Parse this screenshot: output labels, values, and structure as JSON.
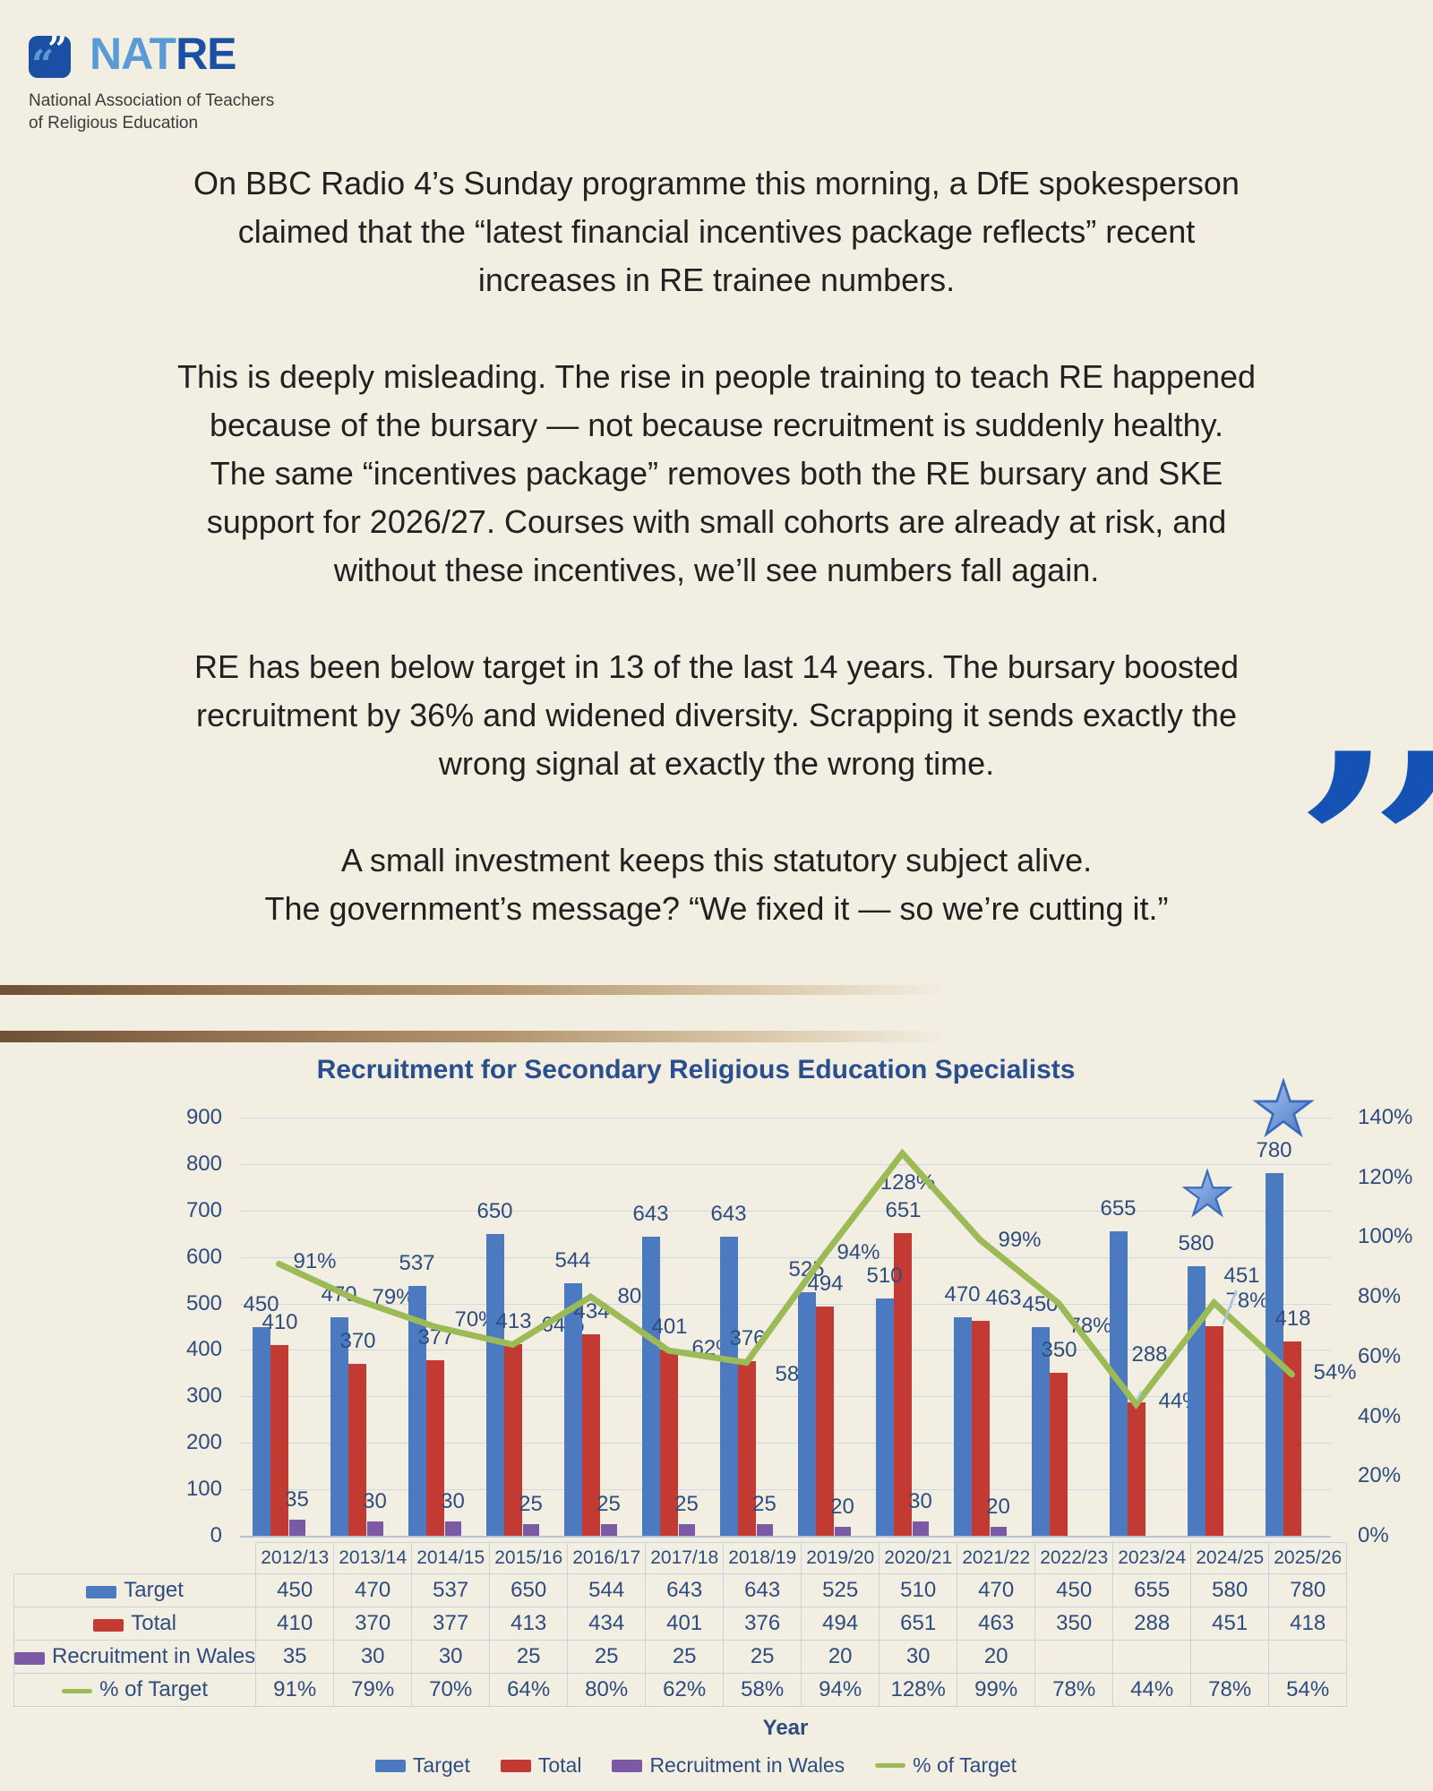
{
  "logo": {
    "icon_open": "“",
    "icon_close": "”",
    "acronym_light": "NAT",
    "acronym_dark": "RE",
    "subtitle_line1": "National Association of Teachers",
    "subtitle_line2": "of Religious Education",
    "colors": {
      "dark_blue": "#1b4fa3",
      "light_blue": "#5b9bd5"
    }
  },
  "quote": {
    "paragraphs": [
      "On BBC Radio 4’s Sunday programme this morning, a DfE spokesperson\nclaimed that the “latest financial incentives package reflects” recent\nincreases in RE trainee numbers.",
      "This is deeply misleading. The rise in people training to teach RE happened\nbecause of the bursary — not because recruitment is suddenly healthy.\nThe same “incentives package” removes both the RE bursary and SKE\nsupport for 2026/27. Courses with small cohorts are already at risk, and\nwithout these incentives, we’ll see numbers fall again.",
      "RE has been below target in 13 of the last 14 years. The bursary boosted\nrecruitment by 36% and widened diversity. Scrapping it sends exactly the\nwrong signal at exactly the wrong time.",
      "A small investment keeps this statutory subject alive.\nThe government’s message? “We fixed it — so we’re cutting it.”"
    ],
    "mark": "”",
    "mark_color": "#1453b4"
  },
  "chart_data": {
    "type": "bar+line combo",
    "title": "Recruitment for Secondary Religious Education Specialists",
    "xlabel": "Year",
    "categories": [
      "2012/13",
      "2013/14",
      "2014/15",
      "2015/16",
      "2016/17",
      "2017/18",
      "2018/19",
      "2019/20",
      "2020/21",
      "2021/22",
      "2022/23",
      "2023/24",
      "2024/25",
      "2025/26"
    ],
    "series": [
      {
        "name": "Target",
        "type": "bar",
        "color": "#4b7ac1",
        "values": [
          450,
          470,
          537,
          650,
          544,
          643,
          643,
          525,
          510,
          470,
          450,
          655,
          580,
          780
        ]
      },
      {
        "name": "Total",
        "type": "bar",
        "color": "#c23a31",
        "values": [
          410,
          370,
          377,
          413,
          434,
          401,
          376,
          494,
          651,
          463,
          350,
          288,
          451,
          418
        ]
      },
      {
        "name": "Recruitment in Wales",
        "type": "bar",
        "color": "#7c59a5",
        "values": [
          35,
          30,
          30,
          25,
          25,
          25,
          25,
          20,
          30,
          20,
          null,
          null,
          null,
          null
        ]
      },
      {
        "name": "% of Target",
        "type": "line",
        "color": "#9cba56",
        "values": [
          91,
          79,
          70,
          64,
          80,
          62,
          58,
          94,
          128,
          99,
          78,
          44,
          78,
          54
        ]
      }
    ],
    "pct_labels": [
      "91%",
      "79%",
      "70%",
      "64%",
      "80%",
      "62%",
      "58%",
      "94%",
      "128%",
      "99%",
      "78%",
      "44%",
      "78%",
      "54%"
    ],
    "left_axis": {
      "min": 0,
      "max": 900,
      "step": 100
    },
    "right_axis": {
      "min": 0,
      "max": 140,
      "step": 20,
      "suffix": "%"
    },
    "grid": true,
    "legend_position": "bottom",
    "legend": [
      "Target",
      "Total",
      "Recruitment in Wales",
      "% of Target"
    ],
    "annotations": [
      {
        "type": "star",
        "category": "2024/25",
        "size": "small"
      },
      {
        "type": "star",
        "category": "2025/26",
        "size": "large"
      }
    ]
  },
  "table": {
    "columns": [
      "2012/13",
      "2013/14",
      "2014/15",
      "2015/16",
      "2016/17",
      "2017/18",
      "2018/19",
      "2019/20",
      "2020/21",
      "2021/22",
      "2022/23",
      "2023/24",
      "2024/25",
      "2025/26"
    ],
    "rows": [
      {
        "label": "Target",
        "swatch": "target",
        "cells": [
          "450",
          "470",
          "537",
          "650",
          "544",
          "643",
          "643",
          "525",
          "510",
          "470",
          "450",
          "655",
          "580",
          "780"
        ]
      },
      {
        "label": "Total",
        "swatch": "total",
        "cells": [
          "410",
          "370",
          "377",
          "413",
          "434",
          "401",
          "376",
          "494",
          "651",
          "463",
          "350",
          "288",
          "451",
          "418"
        ]
      },
      {
        "label": "Recruitment in Wales",
        "swatch": "wales",
        "cells": [
          "35",
          "30",
          "30",
          "25",
          "25",
          "25",
          "25",
          "20",
          "30",
          "20",
          "",
          "",
          "",
          ""
        ]
      },
      {
        "label": "% of Target",
        "swatch": "line",
        "cells": [
          "91%",
          "79%",
          "70%",
          "64%",
          "80%",
          "62%",
          "58%",
          "94%",
          "128%",
          "99%",
          "78%",
          "44%",
          "78%",
          "54%"
        ]
      }
    ]
  },
  "colors": {
    "background": "#f3eee2",
    "chart_text": "#2e4d7e",
    "title_blue": "#2a4f8f",
    "target_blue": "#4b7ac1",
    "total_red": "#c23a31",
    "wales_purple": "#7c59a5",
    "line_green": "#9cba56",
    "star_blue": "#4a79c9"
  }
}
